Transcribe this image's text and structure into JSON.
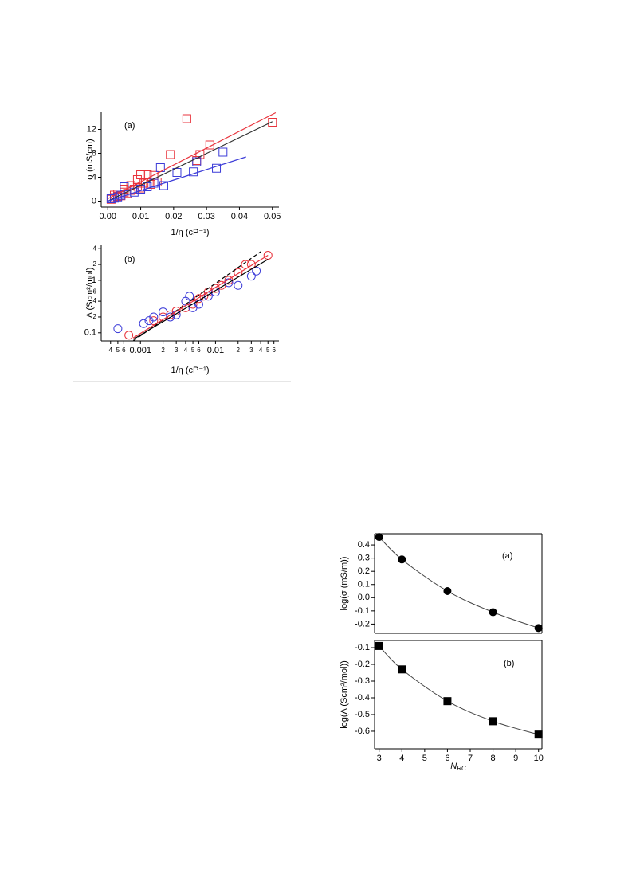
{
  "chart_data": [
    {
      "type": "scatter",
      "frame": "axes",
      "annotation": "(a)",
      "y_label": "σ (mS/cm)",
      "x_label": "1/η (cP⁻¹)",
      "xlim": [
        -0.002,
        0.052
      ],
      "ylim": [
        -1,
        15
      ],
      "xticks": [
        {
          "value": 0,
          "label": "0.00"
        },
        0.01,
        0.02,
        0.03,
        0.04,
        0.05
      ],
      "yticks": [
        0,
        4,
        8,
        12
      ],
      "series": [
        {
          "color": "#e8333c",
          "marker": "square",
          "filled": false,
          "x": [
            0.001,
            0.002,
            0.002,
            0.003,
            0.003,
            0.004,
            0.005,
            0.005,
            0.006,
            0.007,
            0.007,
            0.008,
            0.009,
            0.009,
            0.01,
            0.01,
            0.011,
            0.012,
            0.013,
            0.014,
            0.015,
            0.019,
            0.024,
            0.027,
            0.028,
            0.031,
            0.05
          ],
          "values": [
            0.3,
            0.6,
            1.0,
            0.8,
            1.2,
            0.9,
            1.5,
            2.0,
            1.3,
            1.8,
            2.6,
            2.0,
            2.5,
            3.6,
            2.2,
            4.4,
            3.0,
            4.4,
            2.8,
            4.3,
            3.2,
            7.8,
            13.8,
            6.8,
            7.8,
            9.4,
            13.2
          ]
        },
        {
          "color": "#3c3cd8",
          "marker": "square",
          "filled": false,
          "x": [
            0.001,
            0.002,
            0.003,
            0.004,
            0.005,
            0.006,
            0.008,
            0.01,
            0.012,
            0.014,
            0.016,
            0.017,
            0.021,
            0.026,
            0.027,
            0.033,
            0.035
          ],
          "values": [
            0.4,
            0.5,
            0.7,
            1.0,
            2.4,
            1.2,
            1.5,
            2.0,
            2.4,
            3.0,
            5.6,
            2.6,
            4.8,
            4.9,
            6.6,
            5.5,
            8.2
          ]
        },
        {
          "color": "#e8333c",
          "marker": "line",
          "x": [
            0,
            0.051
          ],
          "values": [
            0.4,
            14.8
          ]
        },
        {
          "color": "#333333",
          "marker": "line",
          "x": [
            0,
            0.05
          ],
          "values": [
            0,
            13.3
          ]
        },
        {
          "color": "#3c3cd8",
          "marker": "line",
          "x": [
            0,
            0.042
          ],
          "values": [
            0,
            7.4
          ]
        }
      ]
    },
    {
      "type": "scatter",
      "frame": "axes",
      "annotation": "(b)",
      "y_label": "Λ (Scm²/mol)",
      "x_label": "1/η (cP⁻¹)",
      "log_x": true,
      "log_y": true,
      "xlim": [
        0.0003,
        0.07
      ],
      "ylim": [
        0.07,
        4.8
      ],
      "xticks": [
        {
          "value": 0.0004,
          "label": "4"
        },
        {
          "value": 0.0005,
          "label": "5"
        },
        {
          "value": 0.0006,
          "label": "6"
        },
        0.001,
        {
          "value": 0.002,
          "label": "2"
        },
        {
          "value": 0.003,
          "label": "3"
        },
        {
          "value": 0.004,
          "label": "4"
        },
        {
          "value": 0.005,
          "label": "5"
        },
        {
          "value": 0.006,
          "label": "6"
        },
        0.01,
        {
          "value": 0.02,
          "label": "2"
        },
        {
          "value": 0.03,
          "label": "3"
        },
        {
          "value": 0.04,
          "label": "4"
        },
        {
          "value": 0.05,
          "label": "5"
        },
        {
          "value": 0.06,
          "label": "6"
        }
      ],
      "yticks": [
        0.1,
        {
          "value": 0.2,
          "label": "2"
        },
        {
          "value": 0.4,
          "label": "4"
        },
        {
          "value": 0.6,
          "label": "6"
        },
        1,
        {
          "value": 2,
          "label": "2"
        },
        {
          "value": 4,
          "label": "4"
        }
      ],
      "series": [
        {
          "color": "#e8333c",
          "marker": "circle",
          "filled": false,
          "x": [
            0.0007,
            0.0015,
            0.002,
            0.0025,
            0.003,
            0.004,
            0.005,
            0.006,
            0.007,
            0.008,
            0.01,
            0.012,
            0.015,
            0.02,
            0.025,
            0.03,
            0.05
          ],
          "values": [
            0.09,
            0.17,
            0.2,
            0.22,
            0.26,
            0.3,
            0.35,
            0.45,
            0.5,
            0.6,
            0.7,
            0.8,
            1.0,
            1.4,
            2.0,
            2.0,
            3.0
          ]
        },
        {
          "color": "#3c3cd8",
          "marker": "circle",
          "filled": false,
          "x": [
            0.0005,
            0.0011,
            0.0013,
            0.0015,
            0.002,
            0.0025,
            0.003,
            0.004,
            0.0045,
            0.005,
            0.006,
            0.008,
            0.01,
            0.015,
            0.02,
            0.03,
            0.035
          ],
          "values": [
            0.12,
            0.15,
            0.17,
            0.2,
            0.25,
            0.2,
            0.22,
            0.4,
            0.5,
            0.3,
            0.35,
            0.5,
            0.6,
            0.9,
            0.8,
            1.2,
            1.5
          ]
        },
        {
          "color": "#000000",
          "marker": "line",
          "dash": true,
          "x": [
            0.0008,
            0.04
          ],
          "values": [
            0.07,
            3.5
          ]
        },
        {
          "color": "#000000",
          "marker": "line",
          "x": [
            0.0008,
            0.05
          ],
          "values": [
            0.075,
            2.5
          ]
        },
        {
          "color": "#e8333c",
          "marker": "line",
          "x": [
            0.0008,
            0.05
          ],
          "values": [
            0.08,
            3.0
          ]
        }
      ]
    },
    {
      "type": "scatter",
      "frame": "box",
      "annotation": "(a)",
      "y_label": "log(σ (mS/m))",
      "xlim": [
        2.8,
        10.15
      ],
      "ylim": [
        -0.27,
        0.485
      ],
      "yticks": [
        -0.2,
        -0.1,
        {
          "value": 0,
          "label": "0.0"
        },
        0.1,
        0.2,
        0.3,
        0.4
      ],
      "series": [
        {
          "color": "#000000",
          "marker": "circle",
          "filled": true,
          "curve": true,
          "x": [
            3,
            4,
            6,
            8,
            10
          ],
          "values": [
            0.46,
            0.29,
            0.05,
            -0.11,
            -0.23
          ]
        }
      ]
    },
    {
      "type": "scatter",
      "frame": "box",
      "annotation": "(b)",
      "y_label": "log(Λ (Scm²/mol))",
      "x_label": "N",
      "x_label_sub": "RC",
      "xlim": [
        2.8,
        10.15
      ],
      "ylim": [
        -0.705,
        -0.057
      ],
      "xticks": [
        3,
        4,
        5,
        6,
        7,
        8,
        9,
        10
      ],
      "yticks": [
        -0.6,
        -0.5,
        -0.4,
        -0.3,
        -0.2,
        -0.1
      ],
      "series": [
        {
          "color": "#000000",
          "marker": "square",
          "filled": true,
          "curve": true,
          "x": [
            3,
            4,
            6,
            8,
            10
          ],
          "values": [
            -0.09,
            -0.23,
            -0.42,
            -0.54,
            -0.62
          ]
        }
      ]
    }
  ]
}
